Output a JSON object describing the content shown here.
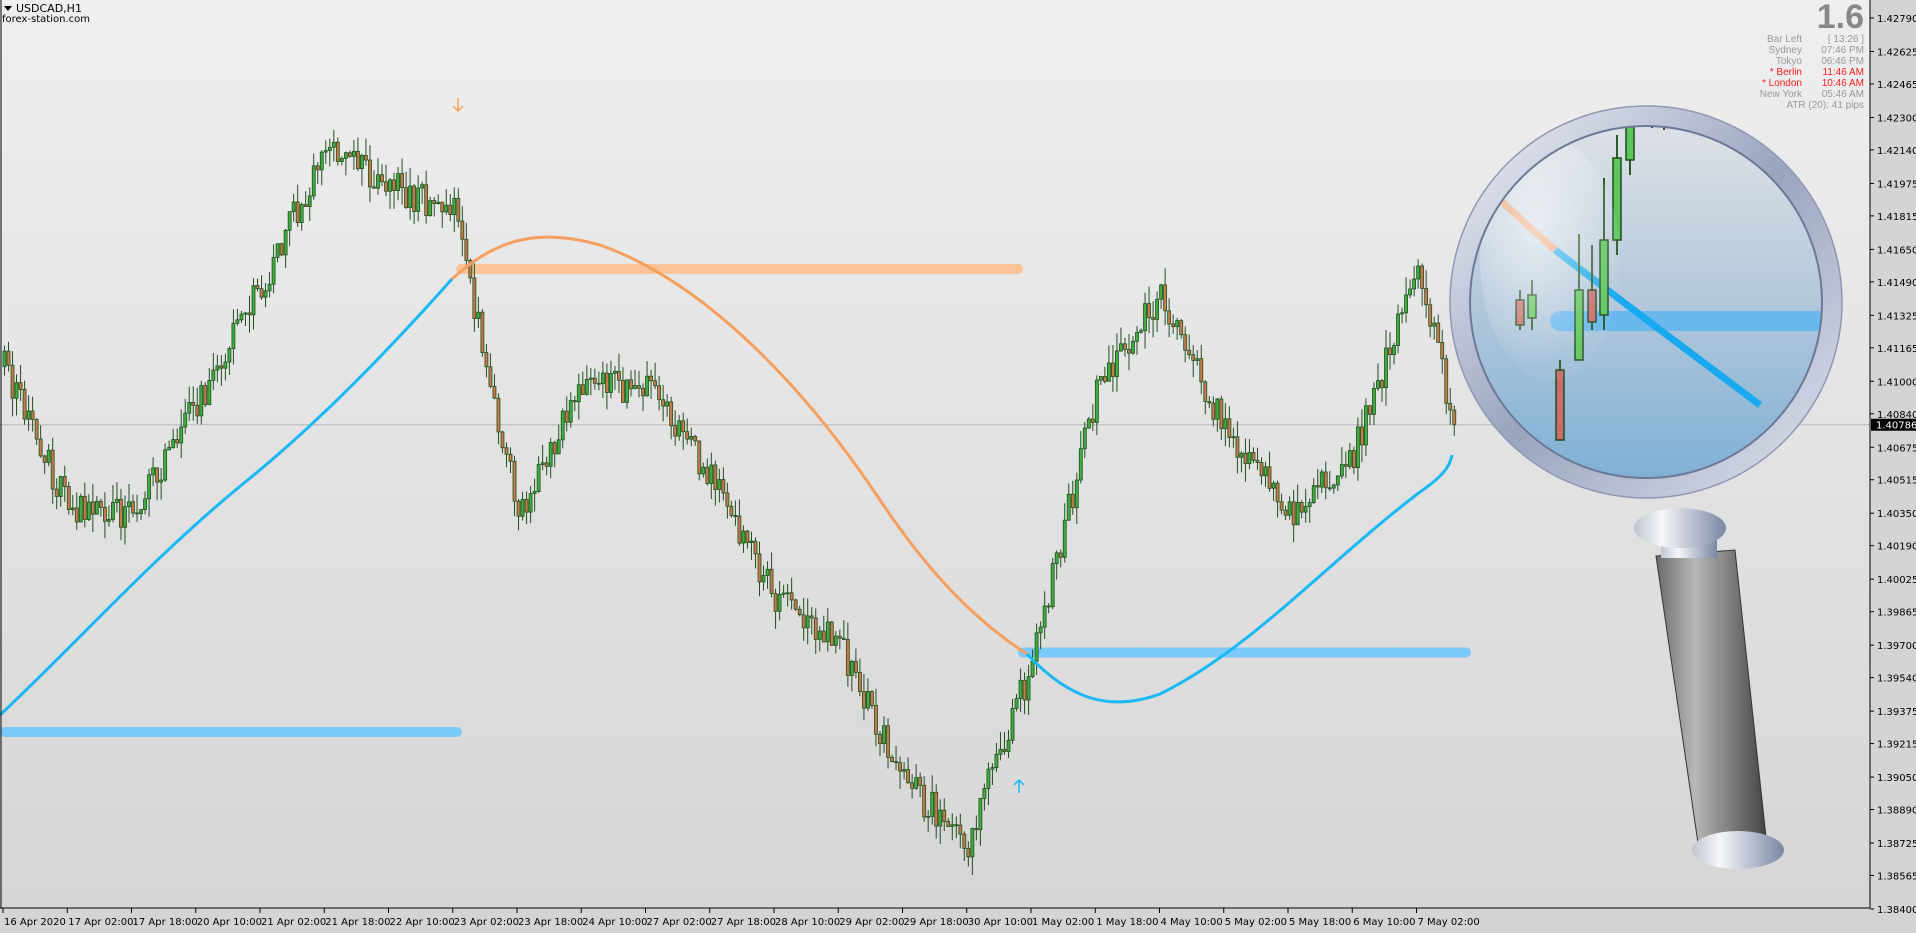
{
  "header": {
    "symbol_timeframe": "USDCAD,H1",
    "watermark": "forex-station.com"
  },
  "info_panel": {
    "spread": "1.6",
    "rows": [
      {
        "label": "Bar Left",
        "value": "[ 13:26 ]",
        "highlight": false
      },
      {
        "label": "Sydney",
        "value": "07:46 PM",
        "highlight": false
      },
      {
        "label": "Tokyo",
        "value": "06:46 PM",
        "highlight": false
      },
      {
        "label": "* Berlin",
        "value": "11:46 AM",
        "highlight": true
      },
      {
        "label": "* London",
        "value": "10:46 AM",
        "highlight": true
      },
      {
        "label": "New York",
        "value": "05:46 AM",
        "highlight": false
      }
    ],
    "atr": "ATR (20): 41 pips"
  },
  "colors": {
    "bull_body": "#3fae3f",
    "bear_body": "#c8794a",
    "candle_outline": "#1f4f1f",
    "ma_up": "#1ab8f5",
    "ma_down": "#f5a060",
    "band_blue": "#7ccaf8",
    "band_orange": "#f9c39a",
    "highlight_text": "#ff1a1a"
  },
  "chart_data": {
    "type": "candlestick",
    "symbol": "USDCAD",
    "timeframe": "H1",
    "ylim": [
      1.384,
      1.4279
    ],
    "y_ticks": [
      "1.42790",
      "1.42625",
      "1.42465",
      "1.42300",
      "1.42140",
      "1.41975",
      "1.41815",
      "1.41650",
      "1.41490",
      "1.41325",
      "1.41165",
      "1.41000",
      "1.40840",
      "1.40675",
      "1.40515",
      "1.40350",
      "1.40190",
      "1.40025",
      "1.39865",
      "1.39700",
      "1.39540",
      "1.39375",
      "1.39215",
      "1.39050",
      "1.38890",
      "1.38725",
      "1.38565",
      "1.38400"
    ],
    "current_price": "1.40786",
    "x_ticks": [
      "16 Apr 2020",
      "17 Apr 02:00",
      "17 Apr 18:00",
      "20 Apr 10:00",
      "21 Apr 02:00",
      "21 Apr 18:00",
      "22 Apr 10:00",
      "23 Apr 02:00",
      "23 Apr 18:00",
      "24 Apr 10:00",
      "27 Apr 02:00",
      "27 Apr 18:00",
      "28 Apr 10:00",
      "29 Apr 02:00",
      "29 Apr 18:00",
      "30 Apr 10:00",
      "1 May 02:00",
      "1 May 18:00",
      "4 May 10:00",
      "5 May 02:00",
      "5 May 18:00",
      "6 May 10:00",
      "7 May 02:00"
    ],
    "approx_close_at_ticks": [
      1.41072,
      1.40374,
      1.40355,
      1.40892,
      1.41472,
      1.42144,
      1.41958,
      1.41845,
      1.40338,
      1.40976,
      1.40975,
      1.40525,
      1.39941,
      1.39704,
      1.39021,
      1.38736,
      1.39616,
      1.4096,
      1.41434,
      1.4076,
      1.4035,
      1.4065,
      1.41555
    ],
    "last_close": 1.40786,
    "levels": [
      {
        "color": "blue",
        "price": 1.39272
      },
      {
        "color": "orange",
        "price": 1.41554
      },
      {
        "color": "blue",
        "price": 1.39664
      }
    ],
    "signals": [
      {
        "type": "sell-arrow",
        "color": "orange"
      },
      {
        "type": "buy-arrow",
        "color": "blue"
      }
    ]
  }
}
